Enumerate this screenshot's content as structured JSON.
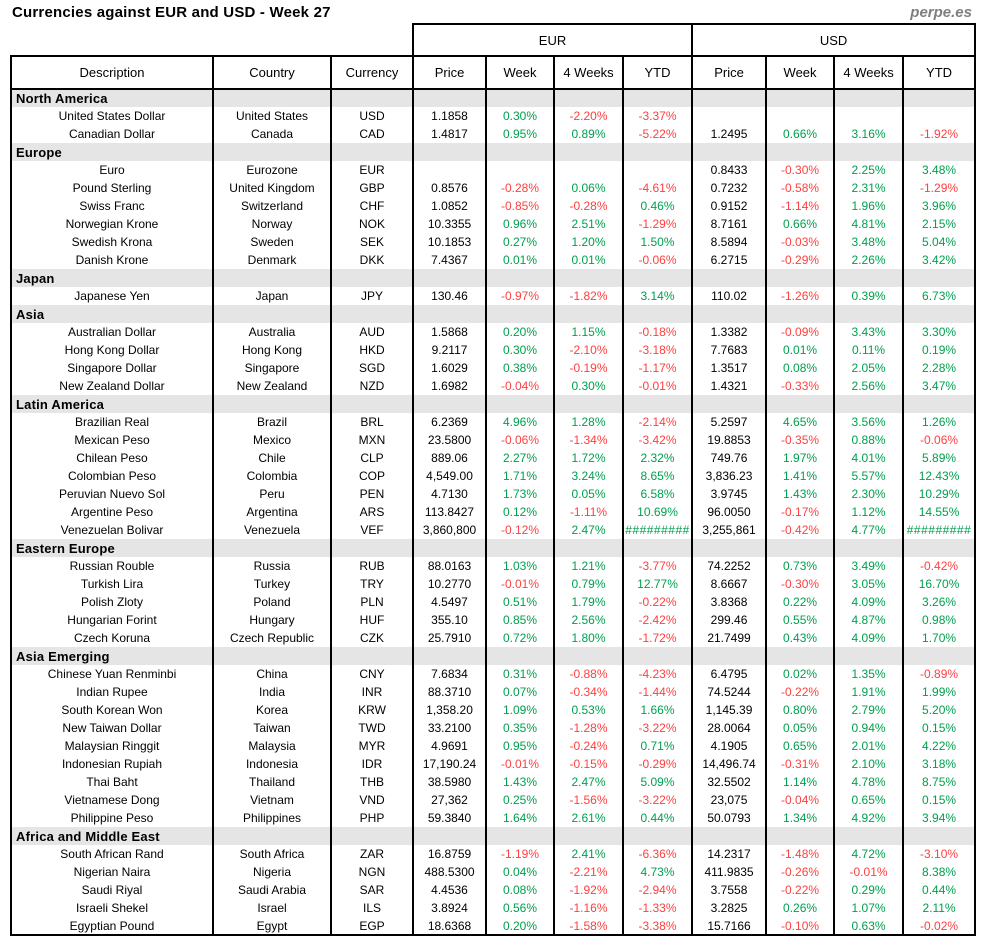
{
  "page": {
    "title": "Currencies against EUR and USD - Week 27",
    "watermark": "perpe.es"
  },
  "colors": {
    "positive": "#00a04e",
    "negative": "#ff4040",
    "section_background": "#e5e5e5",
    "watermark_gray": "#7f7f7f",
    "border": "#000000"
  },
  "chart_data": {
    "type": "table",
    "title": "Currencies against EUR and USD - Week 27",
    "group_headers": [
      "EUR",
      "USD"
    ],
    "columns": [
      "Description",
      "Country",
      "Currency",
      "Price",
      "Week",
      "4 Weeks",
      "YTD",
      "Price",
      "Week",
      "4 Weeks",
      "YTD"
    ],
    "sections": [
      {
        "name": "North America",
        "rows": [
          {
            "description": "United States Dollar",
            "country": "United States",
            "currency": "USD",
            "eur": [
              "1.1858",
              "0.30%",
              "-2.20%",
              "-3.37%"
            ],
            "usd": [
              "",
              "",
              "",
              ""
            ]
          },
          {
            "description": "Canadian Dollar",
            "country": "Canada",
            "currency": "CAD",
            "eur": [
              "1.4817",
              "0.95%",
              "0.89%",
              "-5.22%"
            ],
            "usd": [
              "1.2495",
              "0.66%",
              "3.16%",
              "-1.92%"
            ]
          }
        ]
      },
      {
        "name": "Europe",
        "rows": [
          {
            "description": "Euro",
            "country": "Eurozone",
            "currency": "EUR",
            "eur": [
              "",
              "",
              "",
              ""
            ],
            "usd": [
              "0.8433",
              "-0.30%",
              "2.25%",
              "3.48%"
            ]
          },
          {
            "description": "Pound Sterling",
            "country": "United Kingdom",
            "currency": "GBP",
            "eur": [
              "0.8576",
              "-0.28%",
              "0.06%",
              "-4.61%"
            ],
            "usd": [
              "0.7232",
              "-0.58%",
              "2.31%",
              "-1.29%"
            ]
          },
          {
            "description": "Swiss Franc",
            "country": "Switzerland",
            "currency": "CHF",
            "eur": [
              "1.0852",
              "-0.85%",
              "-0.28%",
              "0.46%"
            ],
            "usd": [
              "0.9152",
              "-1.14%",
              "1.96%",
              "3.96%"
            ]
          },
          {
            "description": "Norwegian Krone",
            "country": "Norway",
            "currency": "NOK",
            "eur": [
              "10.3355",
              "0.96%",
              "2.51%",
              "-1.29%"
            ],
            "usd": [
              "8.7161",
              "0.66%",
              "4.81%",
              "2.15%"
            ]
          },
          {
            "description": "Swedish Krona",
            "country": "Sweden",
            "currency": "SEK",
            "eur": [
              "10.1853",
              "0.27%",
              "1.20%",
              "1.50%"
            ],
            "usd": [
              "8.5894",
              "-0.03%",
              "3.48%",
              "5.04%"
            ]
          },
          {
            "description": "Danish Krone",
            "country": "Denmark",
            "currency": "DKK",
            "eur": [
              "7.4367",
              "0.01%",
              "0.01%",
              "-0.06%"
            ],
            "usd": [
              "6.2715",
              "-0.29%",
              "2.26%",
              "3.42%"
            ]
          }
        ]
      },
      {
        "name": "Japan",
        "rows": [
          {
            "description": "Japanese Yen",
            "country": "Japan",
            "currency": "JPY",
            "eur": [
              "130.46",
              "-0.97%",
              "-1.82%",
              "3.14%"
            ],
            "usd": [
              "110.02",
              "-1.26%",
              "0.39%",
              "6.73%"
            ]
          }
        ]
      },
      {
        "name": "Asia",
        "rows": [
          {
            "description": "Australian Dollar",
            "country": "Australia",
            "currency": "AUD",
            "eur": [
              "1.5868",
              "0.20%",
              "1.15%",
              "-0.18%"
            ],
            "usd": [
              "1.3382",
              "-0.09%",
              "3.43%",
              "3.30%"
            ]
          },
          {
            "description": "Hong Kong Dollar",
            "country": "Hong Kong",
            "currency": "HKD",
            "eur": [
              "9.2117",
              "0.30%",
              "-2.10%",
              "-3.18%"
            ],
            "usd": [
              "7.7683",
              "0.01%",
              "0.11%",
              "0.19%"
            ]
          },
          {
            "description": "Singapore Dollar",
            "country": "Singapore",
            "currency": "SGD",
            "eur": [
              "1.6029",
              "0.38%",
              "-0.19%",
              "-1.17%"
            ],
            "usd": [
              "1.3517",
              "0.08%",
              "2.05%",
              "2.28%"
            ]
          },
          {
            "description": "New Zealand Dollar",
            "country": "New Zealand",
            "currency": "NZD",
            "eur": [
              "1.6982",
              "-0.04%",
              "0.30%",
              "-0.01%"
            ],
            "usd": [
              "1.4321",
              "-0.33%",
              "2.56%",
              "3.47%"
            ]
          }
        ]
      },
      {
        "name": "Latin America",
        "rows": [
          {
            "description": "Brazilian Real",
            "country": "Brazil",
            "currency": "BRL",
            "eur": [
              "6.2369",
              "4.96%",
              "1.28%",
              "-2.14%"
            ],
            "usd": [
              "5.2597",
              "4.65%",
              "3.56%",
              "1.26%"
            ]
          },
          {
            "description": "Mexican Peso",
            "country": "Mexico",
            "currency": "MXN",
            "eur": [
              "23.5800",
              "-0.06%",
              "-1.34%",
              "-3.42%"
            ],
            "usd": [
              "19.8853",
              "-0.35%",
              "0.88%",
              "-0.06%"
            ]
          },
          {
            "description": "Chilean Peso",
            "country": "Chile",
            "currency": "CLP",
            "eur": [
              "889.06",
              "2.27%",
              "1.72%",
              "2.32%"
            ],
            "usd": [
              "749.76",
              "1.97%",
              "4.01%",
              "5.89%"
            ]
          },
          {
            "description": "Colombian Peso",
            "country": "Colombia",
            "currency": "COP",
            "eur": [
              "4,549.00",
              "1.71%",
              "3.24%",
              "8.65%"
            ],
            "usd": [
              "3,836.23",
              "1.41%",
              "5.57%",
              "12.43%"
            ]
          },
          {
            "description": "Peruvian Nuevo Sol",
            "country": "Peru",
            "currency": "PEN",
            "eur": [
              "4.7130",
              "1.73%",
              "0.05%",
              "6.58%"
            ],
            "usd": [
              "3.9745",
              "1.43%",
              "2.30%",
              "10.29%"
            ]
          },
          {
            "description": "Argentine Peso",
            "country": "Argentina",
            "currency": "ARS",
            "eur": [
              "113.8427",
              "0.12%",
              "-1.11%",
              "10.69%"
            ],
            "usd": [
              "96.0050",
              "-0.17%",
              "1.12%",
              "14.55%"
            ]
          },
          {
            "description": "Venezuelan Bolivar",
            "country": "Venezuela",
            "currency": "VEF",
            "eur": [
              "3,860,800",
              "-0.12%",
              "2.47%",
              "#########"
            ],
            "usd": [
              "3,255,861",
              "-0.42%",
              "4.77%",
              "#########"
            ]
          }
        ]
      },
      {
        "name": "Eastern Europe",
        "rows": [
          {
            "description": "Russian Rouble",
            "country": "Russia",
            "currency": "RUB",
            "eur": [
              "88.0163",
              "1.03%",
              "1.21%",
              "-3.77%"
            ],
            "usd": [
              "74.2252",
              "0.73%",
              "3.49%",
              "-0.42%"
            ]
          },
          {
            "description": "Turkish Lira",
            "country": "Turkey",
            "currency": "TRY",
            "eur": [
              "10.2770",
              "-0.01%",
              "0.79%",
              "12.77%"
            ],
            "usd": [
              "8.6667",
              "-0.30%",
              "3.05%",
              "16.70%"
            ]
          },
          {
            "description": "Polish Zloty",
            "country": "Poland",
            "currency": "PLN",
            "eur": [
              "4.5497",
              "0.51%",
              "1.79%",
              "-0.22%"
            ],
            "usd": [
              "3.8368",
              "0.22%",
              "4.09%",
              "3.26%"
            ]
          },
          {
            "description": "Hungarian Forint",
            "country": "Hungary",
            "currency": "HUF",
            "eur": [
              "355.10",
              "0.85%",
              "2.56%",
              "-2.42%"
            ],
            "usd": [
              "299.46",
              "0.55%",
              "4.87%",
              "0.98%"
            ]
          },
          {
            "description": "Czech Koruna",
            "country": "Czech Republic",
            "currency": "CZK",
            "eur": [
              "25.7910",
              "0.72%",
              "1.80%",
              "-1.72%"
            ],
            "usd": [
              "21.7499",
              "0.43%",
              "4.09%",
              "1.70%"
            ]
          }
        ]
      },
      {
        "name": "Asia Emerging",
        "rows": [
          {
            "description": "Chinese Yuan Renminbi",
            "country": "China",
            "currency": "CNY",
            "eur": [
              "7.6834",
              "0.31%",
              "-0.88%",
              "-4.23%"
            ],
            "usd": [
              "6.4795",
              "0.02%",
              "1.35%",
              "-0.89%"
            ]
          },
          {
            "description": "Indian Rupee",
            "country": "India",
            "currency": "INR",
            "eur": [
              "88.3710",
              "0.07%",
              "-0.34%",
              "-1.44%"
            ],
            "usd": [
              "74.5244",
              "-0.22%",
              "1.91%",
              "1.99%"
            ]
          },
          {
            "description": "South Korean Won",
            "country": "Korea",
            "currency": "KRW",
            "eur": [
              "1,358.20",
              "1.09%",
              "0.53%",
              "1.66%"
            ],
            "usd": [
              "1,145.39",
              "0.80%",
              "2.79%",
              "5.20%"
            ]
          },
          {
            "description": "New Taiwan Dollar",
            "country": "Taiwan",
            "currency": "TWD",
            "eur": [
              "33.2100",
              "0.35%",
              "-1.28%",
              "-3.22%"
            ],
            "usd": [
              "28.0064",
              "0.05%",
              "0.94%",
              "0.15%"
            ]
          },
          {
            "description": "Malaysian Ringgit",
            "country": "Malaysia",
            "currency": "MYR",
            "eur": [
              "4.9691",
              "0.95%",
              "-0.24%",
              "0.71%"
            ],
            "usd": [
              "4.1905",
              "0.65%",
              "2.01%",
              "4.22%"
            ]
          },
          {
            "description": "Indonesian Rupiah",
            "country": "Indonesia",
            "currency": "IDR",
            "eur": [
              "17,190.24",
              "-0.01%",
              "-0.15%",
              "-0.29%"
            ],
            "usd": [
              "14,496.74",
              "-0.31%",
              "2.10%",
              "3.18%"
            ]
          },
          {
            "description": "Thai Baht",
            "country": "Thailand",
            "currency": "THB",
            "eur": [
              "38.5980",
              "1.43%",
              "2.47%",
              "5.09%"
            ],
            "usd": [
              "32.5502",
              "1.14%",
              "4.78%",
              "8.75%"
            ]
          },
          {
            "description": "Vietnamese Dong",
            "country": "Vietnam",
            "currency": "VND",
            "eur": [
              "27,362",
              "0.25%",
              "-1.56%",
              "-3.22%"
            ],
            "usd": [
              "23,075",
              "-0.04%",
              "0.65%",
              "0.15%"
            ]
          },
          {
            "description": "Philippine Peso",
            "country": "Philippines",
            "currency": "PHP",
            "eur": [
              "59.3840",
              "1.64%",
              "2.61%",
              "0.44%"
            ],
            "usd": [
              "50.0793",
              "1.34%",
              "4.92%",
              "3.94%"
            ]
          }
        ]
      },
      {
        "name": "Africa and Middle East",
        "rows": [
          {
            "description": "South African Rand",
            "country": "South Africa",
            "currency": "ZAR",
            "eur": [
              "16.8759",
              "-1.19%",
              "2.41%",
              "-6.36%"
            ],
            "usd": [
              "14.2317",
              "-1.48%",
              "4.72%",
              "-3.10%"
            ]
          },
          {
            "description": "Nigerian Naira",
            "country": "Nigeria",
            "currency": "NGN",
            "eur": [
              "488.5300",
              "0.04%",
              "-2.21%",
              "4.73%"
            ],
            "usd": [
              "411.9835",
              "-0.26%",
              "-0.01%",
              "8.38%"
            ]
          },
          {
            "description": "Saudi Riyal",
            "country": "Saudi Arabia",
            "currency": "SAR",
            "eur": [
              "4.4536",
              "0.08%",
              "-1.92%",
              "-2.94%"
            ],
            "usd": [
              "3.7558",
              "-0.22%",
              "0.29%",
              "0.44%"
            ]
          },
          {
            "description": "Israeli Shekel",
            "country": "Israel",
            "currency": "ILS",
            "eur": [
              "3.8924",
              "0.56%",
              "-1.16%",
              "-1.33%"
            ],
            "usd": [
              "3.2825",
              "0.26%",
              "1.07%",
              "2.11%"
            ]
          },
          {
            "description": "Egyptian Pound",
            "country": "Egypt",
            "currency": "EGP",
            "eur": [
              "18.6368",
              "0.20%",
              "-1.58%",
              "-3.38%"
            ],
            "usd": [
              "15.7166",
              "-0.10%",
              "0.63%",
              "-0.02%"
            ]
          }
        ]
      }
    ]
  }
}
